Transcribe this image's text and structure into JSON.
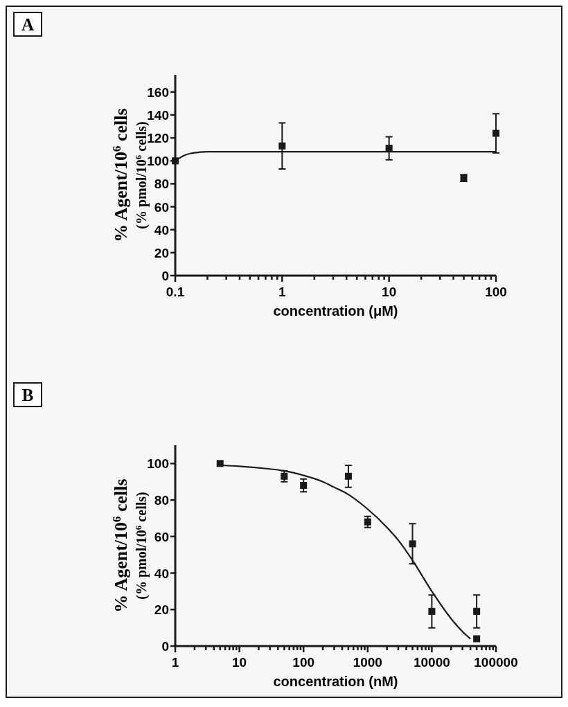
{
  "chart_data": [
    {
      "type": "scatter",
      "annotations": [
        "A"
      ],
      "xlabel": "concentration (μM)",
      "ylabel": "% Agent/10$^{6}$ cells\n(% pmol/10$^{6}$ cells)",
      "log": "x",
      "marker": "square",
      "xlim": [
        0.1,
        100
      ],
      "ylim": [
        0,
        175
      ],
      "xticks": [
        {
          "value": 0.1,
          "label": "0.1"
        },
        {
          "value": 0.2,
          "label": null
        },
        {
          "value": 0.3,
          "label": null
        },
        {
          "value": 0.4,
          "label": null
        },
        {
          "value": 0.5,
          "label": null
        },
        {
          "value": 0.6,
          "label": null
        },
        {
          "value": 0.7,
          "label": null
        },
        {
          "value": 0.8,
          "label": null
        },
        {
          "value": 0.9,
          "label": null
        },
        1,
        {
          "value": 2,
          "label": null
        },
        {
          "value": 3,
          "label": null
        },
        {
          "value": 4,
          "label": null
        },
        {
          "value": 5,
          "label": null
        },
        {
          "value": 6,
          "label": null
        },
        {
          "value": 7,
          "label": null
        },
        {
          "value": 8,
          "label": null
        },
        {
          "value": 9,
          "label": null
        },
        10,
        {
          "value": 20,
          "label": null
        },
        {
          "value": 30,
          "label": null
        },
        {
          "value": 40,
          "label": null
        },
        {
          "value": 50,
          "label": null
        },
        {
          "value": 60,
          "label": null
        },
        {
          "value": 70,
          "label": null
        },
        {
          "value": 80,
          "label": null
        },
        {
          "value": 90,
          "label": null
        },
        100
      ],
      "yticks": [
        0,
        20,
        40,
        60,
        80,
        100,
        120,
        140,
        160
      ],
      "series": [
        {
          "color": "#1a1a1a",
          "x": [
            0.1,
            1,
            10,
            50,
            100
          ],
          "values": [
            100,
            113,
            111,
            85,
            124
          ],
          "errors": [
            null,
            20,
            10,
            3,
            17
          ]
        },
        {
          "type": "line",
          "color": "#1a1a1a",
          "marker": "none",
          "line_style": "solid",
          "x": [
            0.1,
            0.11,
            0.12,
            0.14,
            0.17,
            0.2,
            0.3,
            1,
            10,
            100
          ],
          "values": [
            100,
            102.5,
            104.5,
            106.5,
            107.6,
            108,
            108,
            108,
            108,
            108
          ]
        }
      ]
    },
    {
      "type": "scatter",
      "annotations": [
        "B"
      ],
      "xlabel": "concentration (nM)",
      "ylabel": "% Agent/10$^{6}$ cells\n(% pmol/10$^{6}$ cells)",
      "log": "x",
      "marker": "square",
      "xlim": [
        1,
        100000
      ],
      "ylim": [
        0,
        110
      ],
      "xticks": [
        1,
        {
          "value": 2,
          "label": null
        },
        {
          "value": 3,
          "label": null
        },
        {
          "value": 4,
          "label": null
        },
        {
          "value": 5,
          "label": null
        },
        {
          "value": 6,
          "label": null
        },
        {
          "value": 7,
          "label": null
        },
        {
          "value": 8,
          "label": null
        },
        {
          "value": 9,
          "label": null
        },
        10,
        {
          "value": 20,
          "label": null
        },
        {
          "value": 30,
          "label": null
        },
        {
          "value": 40,
          "label": null
        },
        {
          "value": 50,
          "label": null
        },
        {
          "value": 60,
          "label": null
        },
        {
          "value": 70,
          "label": null
        },
        {
          "value": 80,
          "label": null
        },
        {
          "value": 90,
          "label": null
        },
        100,
        {
          "value": 200,
          "label": null
        },
        {
          "value": 300,
          "label": null
        },
        {
          "value": 400,
          "label": null
        },
        {
          "value": 500,
          "label": null
        },
        {
          "value": 600,
          "label": null
        },
        {
          "value": 700,
          "label": null
        },
        {
          "value": 800,
          "label": null
        },
        {
          "value": 900,
          "label": null
        },
        1000,
        {
          "value": 2000,
          "label": null
        },
        {
          "value": 3000,
          "label": null
        },
        {
          "value": 4000,
          "label": null
        },
        {
          "value": 5000,
          "label": null
        },
        {
          "value": 6000,
          "label": null
        },
        {
          "value": 7000,
          "label": null
        },
        {
          "value": 8000,
          "label": null
        },
        {
          "value": 9000,
          "label": null
        },
        10000,
        {
          "value": 20000,
          "label": null
        },
        {
          "value": 30000,
          "label": null
        },
        {
          "value": 40000,
          "label": null
        },
        {
          "value": 50000,
          "label": null
        },
        {
          "value": 60000,
          "label": null
        },
        {
          "value": 70000,
          "label": null
        },
        {
          "value": 80000,
          "label": null
        },
        {
          "value": 90000,
          "label": null
        },
        100000
      ],
      "yticks": [
        0,
        20,
        40,
        60,
        80,
        100
      ],
      "series": [
        {
          "color": "#1a1a1a",
          "x": [
            5,
            50,
            100,
            500,
            1000,
            5000,
            10000,
            50000,
            50000
          ],
          "values": [
            100,
            93,
            88,
            93,
            68,
            56,
            19,
            19,
            4
          ],
          "errors": [
            null,
            3,
            3.5,
            6,
            3,
            11,
            9,
            9,
            null
          ]
        },
        {
          "type": "line",
          "color": "#1a1a1a",
          "marker": "none",
          "line_style": "solid",
          "x": [
            5,
            10,
            30,
            50,
            100,
            200,
            300,
            500,
            1000,
            2000,
            3000,
            5000,
            10000,
            20000,
            30000,
            40000
          ],
          "values": [
            99,
            98.5,
            97,
            96,
            93.5,
            90,
            87,
            83,
            75,
            65,
            58,
            47,
            30,
            15,
            8,
            4
          ]
        }
      ]
    }
  ]
}
